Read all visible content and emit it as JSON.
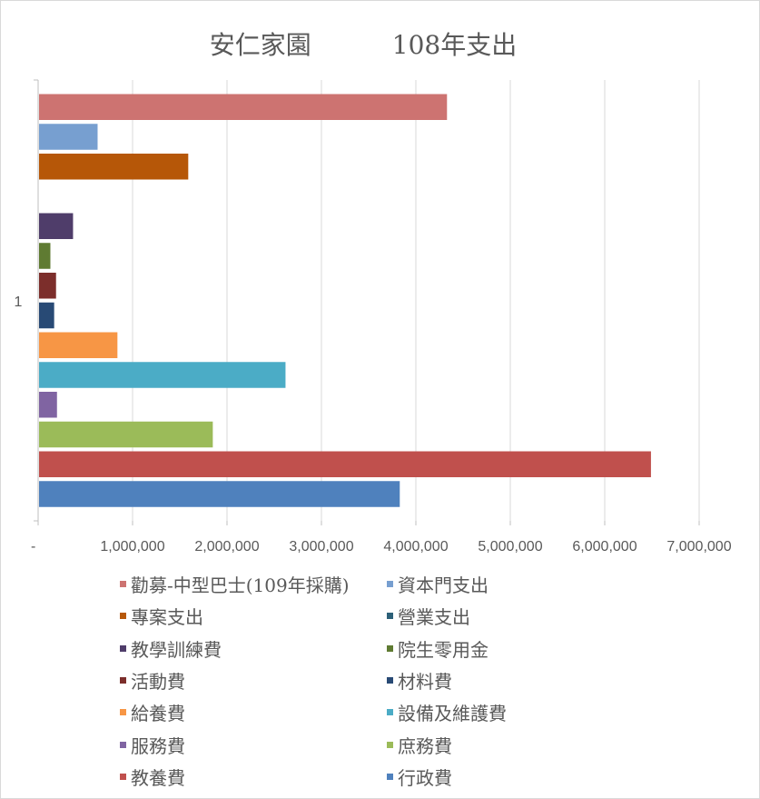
{
  "chart_data": {
    "type": "bar",
    "orientation": "horizontal",
    "title": "安仁家園          108年支出",
    "categories": [
      "1"
    ],
    "xlim": [
      0,
      7000000
    ],
    "x_ticks": [
      "-",
      "1,000,000",
      "2,000,000",
      "3,000,000",
      "4,000,000",
      "5,000,000",
      "6,000,000",
      "7,000,000"
    ],
    "grid": true,
    "legend_position": "bottom",
    "series": [
      {
        "name": "勸募-中型巴士(109年採購)",
        "value": 4320000,
        "color": "#cd7371"
      },
      {
        "name": "資本門支出",
        "value": 620000,
        "color": "#779fd0"
      },
      {
        "name": "專案支出",
        "value": 1580000,
        "color": "#b65708"
      },
      {
        "name": "營業支出",
        "value": 0,
        "color": "#2c6078"
      },
      {
        "name": "教學訓練費",
        "value": 360000,
        "color": "#4f3d6a"
      },
      {
        "name": "院生零用金",
        "value": 120000,
        "color": "#5f7b32"
      },
      {
        "name": "活動費",
        "value": 180000,
        "color": "#7c2e2b"
      },
      {
        "name": "材料費",
        "value": 160000,
        "color": "#284a75"
      },
      {
        "name": "給養費",
        "value": 830000,
        "color": "#f79645"
      },
      {
        "name": "設備及維護費",
        "value": 2610000,
        "color": "#4bacc6"
      },
      {
        "name": "服務費",
        "value": 190000,
        "color": "#8064a2"
      },
      {
        "name": "庶務費",
        "value": 1840000,
        "color": "#9bbb59"
      },
      {
        "name": "教養費",
        "value": 6480000,
        "color": "#c0504d"
      },
      {
        "name": "行政費",
        "value": 3820000,
        "color": "#4f81bd"
      }
    ]
  }
}
